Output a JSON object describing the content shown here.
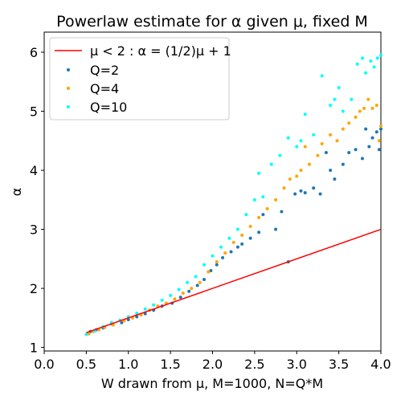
{
  "chart_data": {
    "type": "scatter",
    "title": "Powerlaw estimate for α given μ, fixed M",
    "xlabel": "W drawn from μ, M=1000, N=Q*M",
    "ylabel": "α",
    "xlim": [
      0.0,
      4.0
    ],
    "ylim": [
      0.94,
      6.34
    ],
    "xticks": [
      "0.0",
      "0.5",
      "1.0",
      "1.5",
      "2.0",
      "2.5",
      "3.0",
      "3.5",
      "4.0"
    ],
    "yticks": [
      "1",
      "2",
      "3",
      "4",
      "5",
      "6"
    ],
    "grid": false,
    "legend_position": "top-left",
    "line": {
      "name": "μ < 2 :  α = (1/2)μ + 1",
      "color": "#ff0000",
      "x": [
        0.5,
        4.0
      ],
      "y": [
        1.25,
        3.0
      ]
    },
    "series": [
      {
        "name": "Q=2",
        "color": "#1f77b4",
        "points": [
          [
            0.52,
            1.24
          ],
          [
            0.55,
            1.27
          ],
          [
            0.62,
            1.3
          ],
          [
            0.7,
            1.33
          ],
          [
            0.8,
            1.4
          ],
          [
            0.92,
            1.42
          ],
          [
            1.0,
            1.47
          ],
          [
            1.1,
            1.52
          ],
          [
            1.2,
            1.57
          ],
          [
            1.3,
            1.63
          ],
          [
            1.4,
            1.7
          ],
          [
            1.52,
            1.75
          ],
          [
            1.62,
            1.85
          ],
          [
            1.72,
            1.95
          ],
          [
            1.82,
            2.05
          ],
          [
            1.9,
            2.15
          ],
          [
            1.98,
            2.3
          ],
          [
            2.05,
            2.4
          ],
          [
            2.12,
            2.52
          ],
          [
            2.22,
            2.62
          ],
          [
            2.3,
            2.7
          ],
          [
            2.35,
            2.75
          ],
          [
            2.45,
            2.85
          ],
          [
            2.55,
            2.95
          ],
          [
            2.6,
            3.25
          ],
          [
            2.75,
            3.0
          ],
          [
            2.82,
            3.3
          ],
          [
            2.9,
            2.45
          ],
          [
            2.98,
            3.6
          ],
          [
            3.05,
            3.65
          ],
          [
            3.1,
            3.62
          ],
          [
            3.2,
            3.7
          ],
          [
            3.28,
            3.6
          ],
          [
            3.35,
            4.3
          ],
          [
            3.4,
            4.0
          ],
          [
            3.45,
            3.85
          ],
          [
            3.55,
            4.1
          ],
          [
            3.62,
            4.3
          ],
          [
            3.7,
            4.35
          ],
          [
            3.78,
            4.2
          ],
          [
            3.82,
            4.7
          ],
          [
            3.86,
            4.4
          ],
          [
            3.9,
            4.55
          ],
          [
            3.95,
            4.65
          ],
          [
            3.98,
            4.35
          ],
          [
            4.0,
            4.7
          ]
        ]
      },
      {
        "name": "Q=4",
        "color": "#ffa500",
        "points": [
          [
            0.53,
            1.23
          ],
          [
            0.58,
            1.27
          ],
          [
            0.65,
            1.3
          ],
          [
            0.72,
            1.34
          ],
          [
            0.82,
            1.38
          ],
          [
            0.95,
            1.45
          ],
          [
            1.05,
            1.5
          ],
          [
            1.15,
            1.55
          ],
          [
            1.25,
            1.63
          ],
          [
            1.35,
            1.7
          ],
          [
            1.45,
            1.75
          ],
          [
            1.55,
            1.82
          ],
          [
            1.65,
            1.92
          ],
          [
            1.75,
            2.0
          ],
          [
            1.85,
            2.1
          ],
          [
            1.95,
            2.28
          ],
          [
            2.05,
            2.45
          ],
          [
            2.15,
            2.6
          ],
          [
            2.25,
            2.78
          ],
          [
            2.35,
            2.9
          ],
          [
            2.45,
            3.05
          ],
          [
            2.55,
            3.2
          ],
          [
            2.65,
            3.35
          ],
          [
            2.75,
            3.5
          ],
          [
            2.85,
            3.7
          ],
          [
            2.92,
            3.85
          ],
          [
            3.0,
            3.9
          ],
          [
            3.05,
            4.0
          ],
          [
            3.1,
            4.4
          ],
          [
            3.15,
            4.1
          ],
          [
            3.25,
            4.25
          ],
          [
            3.3,
            4.45
          ],
          [
            3.4,
            4.6
          ],
          [
            3.48,
            4.5
          ],
          [
            3.55,
            4.7
          ],
          [
            3.62,
            4.8
          ],
          [
            3.7,
            4.9
          ],
          [
            3.75,
            5.0
          ],
          [
            3.8,
            5.05
          ],
          [
            3.85,
            5.2
          ],
          [
            3.9,
            5.05
          ],
          [
            3.95,
            5.1
          ],
          [
            3.98,
            4.5
          ],
          [
            4.0,
            4.75
          ]
        ]
      },
      {
        "name": "Q=10",
        "color": "#00ffff",
        "points": [
          [
            0.5,
            1.22
          ],
          [
            0.6,
            1.28
          ],
          [
            0.7,
            1.35
          ],
          [
            0.8,
            1.42
          ],
          [
            0.9,
            1.46
          ],
          [
            1.0,
            1.52
          ],
          [
            1.1,
            1.58
          ],
          [
            1.2,
            1.65
          ],
          [
            1.3,
            1.72
          ],
          [
            1.4,
            1.8
          ],
          [
            1.5,
            1.88
          ],
          [
            1.6,
            1.98
          ],
          [
            1.7,
            2.1
          ],
          [
            1.8,
            2.2
          ],
          [
            1.9,
            2.4
          ],
          [
            2.0,
            2.55
          ],
          [
            2.1,
            2.7
          ],
          [
            2.2,
            2.85
          ],
          [
            2.3,
            3.0
          ],
          [
            2.4,
            3.25
          ],
          [
            2.5,
            3.5
          ],
          [
            2.55,
            3.95
          ],
          [
            2.6,
            3.55
          ],
          [
            2.7,
            4.1
          ],
          [
            2.8,
            4.25
          ],
          [
            2.9,
            4.55
          ],
          [
            3.0,
            4.4
          ],
          [
            3.05,
            4.5
          ],
          [
            3.1,
            4.95
          ],
          [
            3.2,
            4.6
          ],
          [
            3.3,
            5.6
          ],
          [
            3.4,
            5.1
          ],
          [
            3.45,
            5.2
          ],
          [
            3.5,
            5.4
          ],
          [
            3.55,
            5.0
          ],
          [
            3.65,
            5.2
          ],
          [
            3.72,
            5.8
          ],
          [
            3.78,
            5.9
          ],
          [
            3.82,
            5.65
          ],
          [
            3.88,
            5.85
          ],
          [
            3.92,
            5.75
          ],
          [
            3.96,
            5.9
          ],
          [
            4.0,
            5.95
          ]
        ]
      }
    ]
  }
}
